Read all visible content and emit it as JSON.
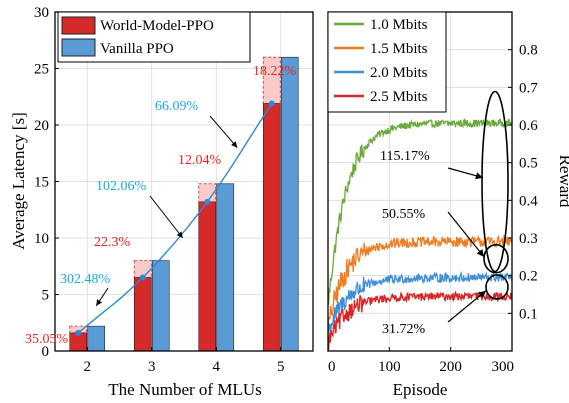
{
  "chart_data": [
    {
      "type": "bar",
      "xlabel": "The Number of MLUs",
      "ylabel": "Average Latency [s]",
      "categories": [
        "2",
        "3",
        "4",
        "5"
      ],
      "ylim": [
        0,
        30
      ],
      "yticks": [
        "0",
        "5",
        "10",
        "15",
        "20",
        "25",
        "30"
      ],
      "grid": true,
      "legend_position": "top-left",
      "series": [
        {
          "name": "World-Model-PPO",
          "values": [
            1.6,
            6.5,
            13.2,
            21.9
          ],
          "color": "#d42a2a"
        },
        {
          "name": "Vanilla PPO",
          "values": [
            2.2,
            8.0,
            14.8,
            26.0
          ],
          "color": "#5b9bd5"
        }
      ],
      "gap_color": "#f8caca",
      "trend_line": {
        "values": [
          1.6,
          6.5,
          13.2,
          21.9
        ],
        "color": "#2b8ad6"
      },
      "annotations": [
        {
          "text": "35.05%",
          "color": "#e8231e",
          "category": "2"
        },
        {
          "text": "302.48%",
          "color": "#1ba6e6",
          "category": "2-3"
        },
        {
          "text": "22.3%",
          "color": "#e8231e",
          "category": "3"
        },
        {
          "text": "102.06%",
          "color": "#1ba6e6",
          "category": "3-4"
        },
        {
          "text": "12.04%",
          "color": "#e8231e",
          "category": "4"
        },
        {
          "text": "66.09%",
          "color": "#1ba6e6",
          "category": "4-5"
        },
        {
          "text": "18.22%",
          "color": "#e8231e",
          "category": "5"
        }
      ]
    },
    {
      "type": "line",
      "xlabel": "Episode",
      "ylabel": "Reward",
      "xlim": [
        0,
        300
      ],
      "ylim": [
        0,
        0.9
      ],
      "xticks": [
        "0",
        "100",
        "200",
        "300"
      ],
      "yticks": [
        "0.1",
        "0.2",
        "0.3",
        "0.4",
        "0.5",
        "0.6",
        "0.7",
        "0.8"
      ],
      "grid": true,
      "legend_position": "top-left",
      "series": [
        {
          "name": "1.0 Mbits",
          "color": "#6aaa3a",
          "start": 0.12,
          "plateau": 0.605,
          "rise": 30,
          "noise": 0.01
        },
        {
          "name": "1.5 Mbits",
          "color": "#ef7d22",
          "start": 0.06,
          "plateau": 0.29,
          "rise": 28,
          "noise": 0.014
        },
        {
          "name": "2.0 Mbits",
          "color": "#3f8fd8",
          "start": 0.05,
          "plateau": 0.195,
          "rise": 32,
          "noise": 0.012
        },
        {
          "name": "2.5 Mbits",
          "color": "#d62728",
          "start": 0.02,
          "plateau": 0.145,
          "rise": 30,
          "noise": 0.011
        }
      ],
      "annotations": [
        {
          "text": "115.17%"
        },
        {
          "text": "50.55%"
        },
        {
          "text": "31.72%"
        }
      ]
    }
  ]
}
